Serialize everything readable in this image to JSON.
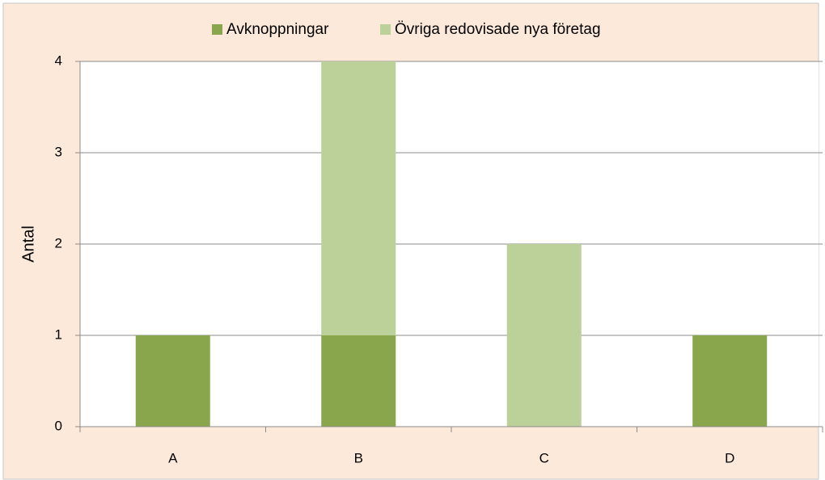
{
  "chart_data": {
    "type": "stacked_bar",
    "categories": [
      "A",
      "B",
      "C",
      "D"
    ],
    "series": [
      {
        "name": "Avknoppningar",
        "color": "#8aa64c",
        "values": [
          1,
          1,
          0,
          1
        ]
      },
      {
        "name": "Övriga redovisade nya företag",
        "color": "#bcd09a",
        "values": [
          0,
          3,
          2,
          0
        ]
      }
    ],
    "ylabel": "Antal",
    "ylim": [
      0,
      4
    ],
    "yticks": [
      0,
      1,
      2,
      3,
      4
    ],
    "grid": true,
    "legend": "top"
  }
}
